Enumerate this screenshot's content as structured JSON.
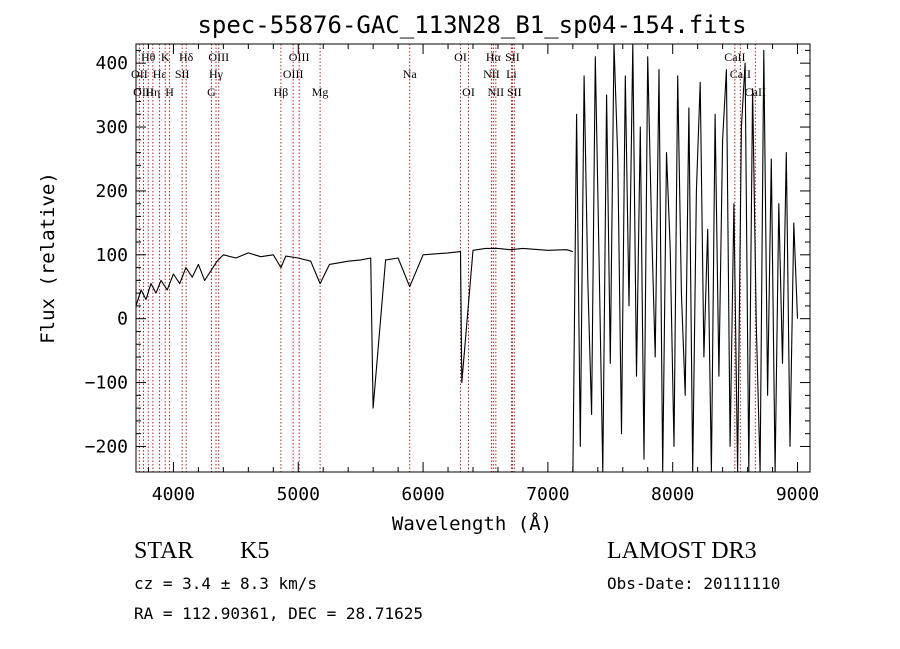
{
  "chart_data": {
    "type": "line",
    "title": "spec-55876-GAC_113N28_B1_sp04-154.fits",
    "xlabel": "Wavelength (Å)",
    "ylabel": "Flux (relative)",
    "xlim": [
      3700,
      9100
    ],
    "ylim": [
      -240,
      430
    ],
    "xticks": [
      4000,
      5000,
      6000,
      7000,
      8000,
      9000
    ],
    "yticks": [
      -200,
      -100,
      0,
      100,
      200,
      300,
      400
    ],
    "xtick_labels": [
      "4000",
      "5000",
      "6000",
      "7000",
      "8000",
      "9000"
    ],
    "ytick_labels": [
      "−200",
      "−100",
      "0",
      "100",
      "200",
      "300",
      "400"
    ],
    "line_color": "#000000",
    "marker_color": "#b22222",
    "series": [
      {
        "name": "flux",
        "x": [
          3700,
          3740,
          3780,
          3820,
          3860,
          3900,
          3950,
          4000,
          4050,
          4100,
          4150,
          4200,
          4250,
          4300,
          4350,
          4400,
          4500,
          4600,
          4700,
          4800,
          4862,
          4900,
          5000,
          5100,
          5175,
          5250,
          5400,
          5500,
          5580,
          5600,
          5700,
          5800,
          5893,
          6000,
          6200,
          6300,
          6310,
          6400,
          6500,
          6600,
          6700,
          6800,
          7000,
          7150,
          7200
        ],
        "y": [
          20,
          45,
          30,
          55,
          40,
          60,
          45,
          70,
          55,
          80,
          65,
          85,
          60,
          75,
          90,
          100,
          95,
          103,
          97,
          100,
          80,
          98,
          95,
          90,
          55,
          85,
          90,
          92,
          95,
          -140,
          92,
          95,
          50,
          100,
          103,
          105,
          -100,
          107,
          110,
          110,
          108,
          110,
          107,
          108,
          105
        ]
      },
      {
        "name": "noisy-red-end",
        "x": [
          7200,
          7230,
          7260,
          7290,
          7320,
          7350,
          7380,
          7410,
          7440,
          7470,
          7500,
          7530,
          7560,
          7590,
          7620,
          7650,
          7680,
          7710,
          7740,
          7770,
          7800,
          7830,
          7860,
          7890,
          7920,
          7950,
          7980,
          8010,
          8040,
          8070,
          8100,
          8130,
          8160,
          8190,
          8220,
          8250,
          8280,
          8310,
          8340,
          8370,
          8400,
          8430,
          8460,
          8490,
          8520,
          8550,
          8580,
          8610,
          8640,
          8670,
          8700,
          8730,
          8760,
          8790,
          8820,
          8850,
          8880,
          8910,
          8940,
          8970,
          9000
        ],
        "y": [
          -240,
          320,
          -200,
          380,
          60,
          -150,
          410,
          90,
          -240,
          350,
          -70,
          430,
          250,
          -180,
          380,
          20,
          430,
          -90,
          300,
          -220,
          410,
          150,
          -60,
          390,
          -240,
          260,
          110,
          -200,
          380,
          40,
          -120,
          330,
          -240,
          200,
          370,
          -60,
          140,
          -240,
          320,
          -90,
          280,
          390,
          -200,
          180,
          -240,
          300,
          400,
          -240,
          360,
          -10,
          -240,
          420,
          -120,
          250,
          -240,
          180,
          -70,
          260,
          -200,
          150,
          0
        ]
      }
    ],
    "line_markers": [
      {
        "label": "Hθ",
        "x": 3798,
        "row": 1
      },
      {
        "label": "OII",
        "x": 3727,
        "row": 2
      },
      {
        "label": "OIII",
        "x": 3760,
        "row": 3
      },
      {
        "label": "K",
        "x": 3934,
        "row": 1
      },
      {
        "label": "Hε",
        "x": 3889,
        "row": 2
      },
      {
        "label": "Hη",
        "x": 3835,
        "row": 3
      },
      {
        "label": "H",
        "x": 3969,
        "row": 3
      },
      {
        "label": "SII",
        "x": 4070,
        "row": 2
      },
      {
        "label": "Hδ",
        "x": 4102,
        "row": 1
      },
      {
        "label": "OIII",
        "x": 4363,
        "row": 1
      },
      {
        "label": "Hγ",
        "x": 4341,
        "row": 2
      },
      {
        "label": "G",
        "x": 4305,
        "row": 3
      },
      {
        "label": "OIII",
        "x": 5007,
        "row": 1
      },
      {
        "label": "OIII",
        "x": 4959,
        "row": 2
      },
      {
        "label": "Hβ",
        "x": 4861,
        "row": 3
      },
      {
        "label": "Mg",
        "x": 5175,
        "row": 3
      },
      {
        "label": "Na",
        "x": 5893,
        "row": 2
      },
      {
        "label": "OI",
        "x": 6300,
        "row": 1
      },
      {
        "label": "OI",
        "x": 6364,
        "row": 3
      },
      {
        "label": "Hα",
        "x": 6563,
        "row": 1
      },
      {
        "label": "SII",
        "x": 6716,
        "row": 1
      },
      {
        "label": "NII",
        "x": 6548,
        "row": 2
      },
      {
        "label": "Li",
        "x": 6708,
        "row": 2
      },
      {
        "label": "NII",
        "x": 6583,
        "row": 3
      },
      {
        "label": "SII",
        "x": 6731,
        "row": 3
      },
      {
        "label": "CaII",
        "x": 8498,
        "row": 1
      },
      {
        "label": "CaII",
        "x": 8542,
        "row": 2
      },
      {
        "label": "CaII",
        "x": 8662,
        "row": 3
      }
    ]
  },
  "info": {
    "object_type": "STAR",
    "subclass": "K5",
    "survey": "LAMOST DR3",
    "cz": "cz = 3.4 ± 8.3 km/s",
    "obs_date": "Obs-Date: 20111110",
    "coords": "RA = 112.90361, DEC =  28.71625"
  }
}
